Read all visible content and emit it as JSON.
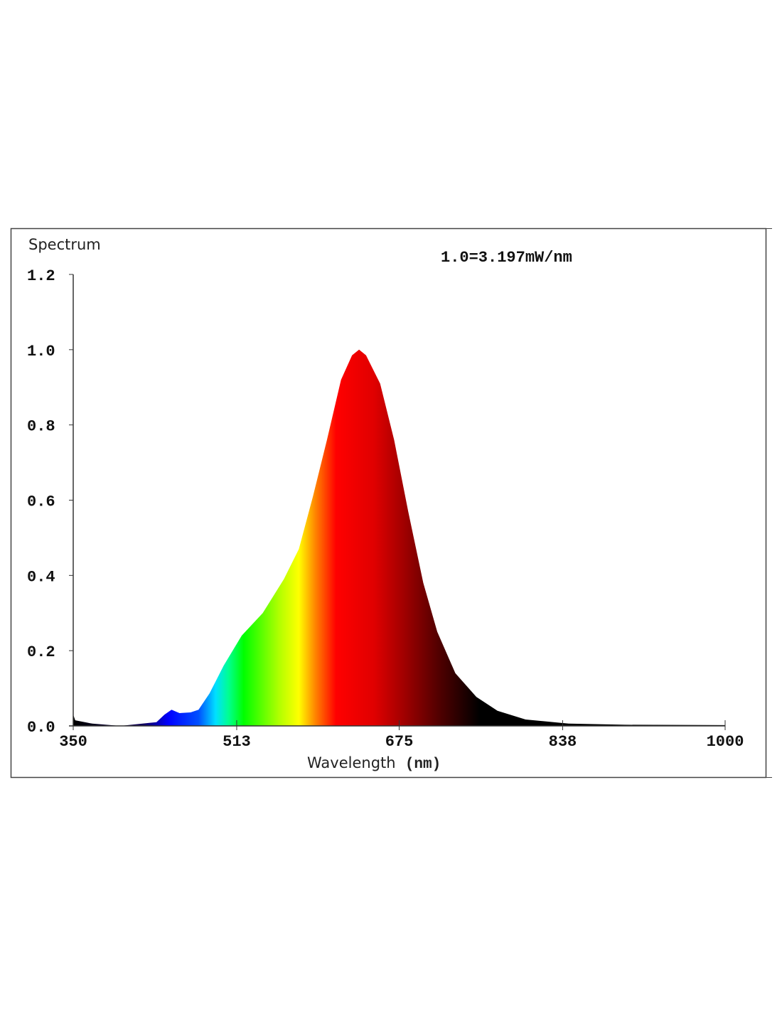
{
  "chart_data": {
    "type": "area",
    "title": "Spectrum",
    "annotation": "1.0=3.197mW/nm",
    "xlabel": "Wavelength",
    "xlabel_unit": "(nm)",
    "ylabel": "",
    "xlim": [
      350,
      1000
    ],
    "ylim": [
      0,
      1.2
    ],
    "x_ticks": [
      350,
      513,
      675,
      838,
      1000
    ],
    "y_ticks": [
      "0.0",
      "0.2",
      "0.4",
      "0.6",
      "0.8",
      "1.0",
      "1.2"
    ],
    "grid": false,
    "fill": "visible-spectrum color gradient by wavelength",
    "series": [
      {
        "x": [
          350,
          352,
          369,
          397,
          433,
          441,
          448,
          456,
          467,
          475,
          486,
          500,
          518,
          539,
          560,
          575,
          589,
          603,
          617,
          628,
          635,
          642,
          656,
          670,
          684,
          699,
          713,
          731,
          752,
          773,
          801,
          844,
          900,
          1000
        ],
        "y": [
          0.03,
          0.015,
          0.006,
          0.0,
          0.01,
          0.03,
          0.043,
          0.034,
          0.036,
          0.043,
          0.087,
          0.16,
          0.24,
          0.3,
          0.39,
          0.47,
          0.61,
          0.76,
          0.92,
          0.985,
          1.0,
          0.985,
          0.91,
          0.76,
          0.57,
          0.38,
          0.25,
          0.14,
          0.077,
          0.04,
          0.017,
          0.006,
          0.003,
          0.002
        ]
      }
    ]
  }
}
